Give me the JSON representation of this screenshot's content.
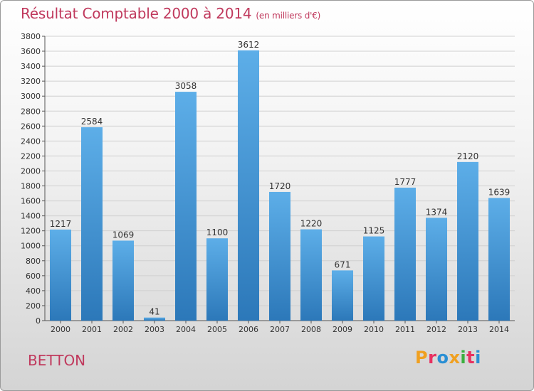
{
  "header": {
    "title": "Résultat Comptable 2000 à 2014",
    "subtitle": "(en milliers d'€)"
  },
  "footer": {
    "commune": "BETTON",
    "logo_letters": [
      "P",
      "r",
      "o",
      "x",
      "i",
      "t",
      "i"
    ],
    "logo_colors": [
      "#f0a020",
      "#e83060",
      "#2a8fd4",
      "#f0a020",
      "#3cb040",
      "#e83060",
      "#2a8fd4"
    ]
  },
  "colors": {
    "bar_top": "#5daee8",
    "bar_bottom": "#2c78b9",
    "text": "#c0395d"
  },
  "chart_data": {
    "type": "bar",
    "title": "Résultat Comptable 2000 à 2014",
    "subtitle": "(en milliers d'€)",
    "categories": [
      "2000",
      "2001",
      "2002",
      "2003",
      "2004",
      "2005",
      "2006",
      "2007",
      "2008",
      "2009",
      "2010",
      "2011",
      "2012",
      "2013",
      "2014"
    ],
    "values": [
      1217,
      2584,
      1069,
      41,
      3058,
      1100,
      3612,
      1720,
      1220,
      671,
      1125,
      1777,
      1374,
      2120,
      1639
    ],
    "ylim": [
      0,
      3800
    ],
    "ytick_step": 200,
    "grid": true,
    "legend": "none"
  }
}
